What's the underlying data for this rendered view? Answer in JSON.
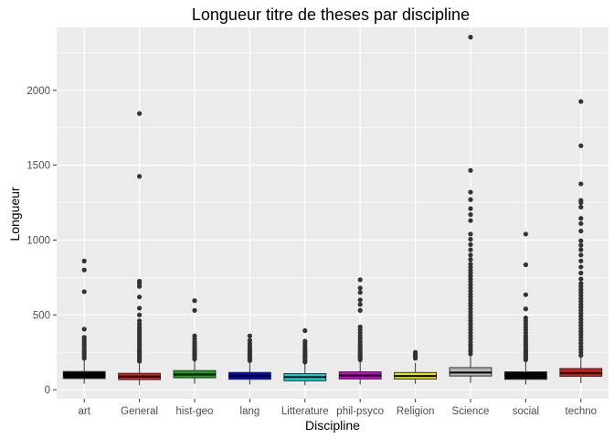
{
  "chart_data": {
    "type": "boxplot",
    "title": "Longueur titre de theses par discipline",
    "xlabel": "Discipline",
    "ylabel": "Longueur",
    "ylim": [
      -60,
      2420
    ],
    "yticks": [
      0,
      500,
      1000,
      1500,
      2000
    ],
    "grid": true,
    "legend": "none",
    "colors": {
      "panel": "#ebebeb",
      "grid": "#ffffff",
      "point": "#333333",
      "box_stroke": "#333333",
      "median": "#000000"
    },
    "categories": [
      "art",
      "General",
      "hist-geo",
      "lang",
      "Litterature",
      "phil-psyco",
      "Religion",
      "Science",
      "social",
      "techno"
    ],
    "series": [
      {
        "category": "art",
        "fill": "#000000",
        "q1": 75,
        "median": 98,
        "q3": 122,
        "whisker_low": 40,
        "whisker_high": 195,
        "outliers": [
          210,
          220,
          230,
          240,
          250,
          260,
          275,
          290,
          305,
          320,
          335,
          350,
          405,
          655,
          800,
          860
        ]
      },
      {
        "category": "General",
        "fill": "#d7191c",
        "q1": 68,
        "median": 88,
        "q3": 110,
        "whisker_low": 30,
        "whisker_high": 180,
        "outliers": [
          190,
          200,
          210,
          220,
          230,
          240,
          250,
          260,
          270,
          285,
          300,
          315,
          330,
          345,
          360,
          375,
          390,
          405,
          420,
          440,
          460,
          500,
          545,
          620,
          690,
          710,
          725,
          1425,
          1845
        ]
      },
      {
        "category": "hist-geo",
        "fill": "#1aa01a",
        "q1": 80,
        "median": 102,
        "q3": 128,
        "whisker_low": 40,
        "whisker_high": 195,
        "outliers": [
          205,
          215,
          225,
          235,
          245,
          255,
          265,
          275,
          290,
          305,
          320,
          340,
          360,
          530,
          595
        ]
      },
      {
        "category": "lang",
        "fill": "#0000cd",
        "q1": 70,
        "median": 92,
        "q3": 116,
        "whisker_low": 35,
        "whisker_high": 185,
        "outliers": [
          195,
          205,
          215,
          225,
          235,
          245,
          255,
          265,
          280,
          295,
          310,
          330,
          360
        ]
      },
      {
        "category": "Litterature",
        "fill": "#00d6d6",
        "q1": 60,
        "median": 85,
        "q3": 108,
        "whisker_low": 30,
        "whisker_high": 175,
        "outliers": [
          185,
          195,
          205,
          215,
          225,
          235,
          245,
          255,
          265,
          280,
          295,
          310,
          325,
          395
        ]
      },
      {
        "category": "phil-psyco",
        "fill": "#cc00cc",
        "q1": 72,
        "median": 96,
        "q3": 120,
        "whisker_low": 35,
        "whisker_high": 190,
        "outliers": [
          200,
          210,
          220,
          230,
          240,
          250,
          260,
          275,
          290,
          305,
          320,
          340,
          360,
          380,
          400,
          420,
          530,
          570,
          600,
          650,
          680,
          735
        ]
      },
      {
        "category": "Religion",
        "fill": "#e6e600",
        "q1": 72,
        "median": 92,
        "q3": 115,
        "whisker_low": 40,
        "whisker_high": 180,
        "outliers": [
          210,
          220,
          230,
          240,
          250
        ]
      },
      {
        "category": "Science",
        "fill": "#b3b3b3",
        "q1": 92,
        "median": 115,
        "q3": 148,
        "whisker_low": 45,
        "whisker_high": 225,
        "outliers": [
          240,
          260,
          280,
          300,
          320,
          340,
          360,
          380,
          400,
          420,
          440,
          460,
          480,
          500,
          520,
          540,
          560,
          580,
          600,
          620,
          640,
          660,
          680,
          700,
          720,
          740,
          760,
          780,
          800,
          820,
          840,
          870,
          900,
          935,
          970,
          1005,
          1040,
          1130,
          1170,
          1210,
          1270,
          1320,
          1465,
          2355
        ]
      },
      {
        "category": "social",
        "fill": "#000000",
        "q1": 70,
        "median": 95,
        "q3": 120,
        "whisker_low": 35,
        "whisker_high": 190,
        "outliers": [
          200,
          210,
          220,
          230,
          240,
          250,
          260,
          270,
          285,
          300,
          315,
          330,
          345,
          360,
          380,
          400,
          420,
          440,
          460,
          480,
          540,
          635,
          835,
          1040
        ]
      },
      {
        "category": "techno",
        "fill": "#d7191c",
        "q1": 90,
        "median": 112,
        "q3": 142,
        "whisker_low": 45,
        "whisker_high": 215,
        "outliers": [
          230,
          250,
          270,
          290,
          310,
          330,
          350,
          370,
          390,
          410,
          430,
          450,
          470,
          490,
          510,
          530,
          550,
          570,
          590,
          610,
          630,
          650,
          670,
          690,
          710,
          740,
          780,
          820,
          860,
          900,
          935,
          965,
          995,
          1060,
          1110,
          1145,
          1220,
          1250,
          1265,
          1375,
          1630,
          1925
        ]
      }
    ]
  }
}
